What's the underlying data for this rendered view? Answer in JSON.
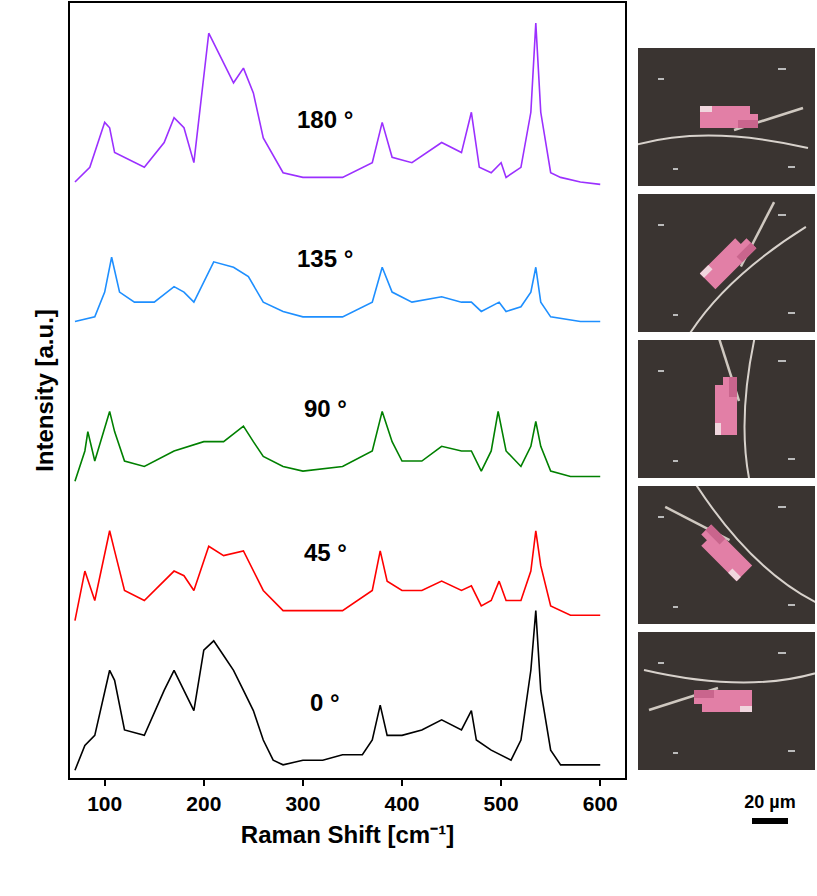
{
  "chart_data": {
    "type": "line",
    "x_label": "Raman Shift [cm⁻¹]",
    "y_label": "Intensity [a.u.]",
    "xlim": [
      65,
      625
    ],
    "xticks": [
      100,
      200,
      300,
      400,
      500,
      600
    ],
    "ylim": [
      0,
      100
    ],
    "tick_labels": "x",
    "grid": false,
    "series": [
      {
        "name": "0 °",
        "color": "#000000",
        "x": [
          70,
          80,
          90,
          100,
          105,
          110,
          120,
          140,
          160,
          170,
          180,
          190,
          200,
          210,
          220,
          230,
          240,
          250,
          260,
          270,
          280,
          300,
          320,
          340,
          360,
          370,
          378,
          385,
          400,
          420,
          440,
          460,
          470,
          475,
          490,
          500,
          510,
          520,
          530,
          535,
          540,
          550,
          560,
          580,
          600
        ],
        "values": [
          1.0,
          4.2,
          5.5,
          11.3,
          13.9,
          12.6,
          6.2,
          5.5,
          11.3,
          13.9,
          11.3,
          8.7,
          16.5,
          17.7,
          15.8,
          13.9,
          11.3,
          8.7,
          4.9,
          2.3,
          1.7,
          2.3,
          2.3,
          3.0,
          3.0,
          4.9,
          9.4,
          5.5,
          5.5,
          6.2,
          7.5,
          6.2,
          8.7,
          4.9,
          3.6,
          3.0,
          2.3,
          4.9,
          13.9,
          21.6,
          11.3,
          3.6,
          1.7,
          1.7,
          1.7
        ]
      },
      {
        "name": "45 °",
        "color": "#ff0000",
        "x": [
          70,
          80,
          90,
          105,
          110,
          120,
          140,
          170,
          180,
          190,
          205,
          220,
          240,
          250,
          260,
          280,
          300,
          340,
          370,
          378,
          385,
          400,
          420,
          440,
          460,
          470,
          480,
          490,
          498,
          505,
          520,
          530,
          535,
          540,
          550,
          570,
          600
        ],
        "values": [
          20.3,
          26.7,
          22.9,
          31.9,
          29.3,
          24.2,
          22.9,
          26.7,
          26.1,
          24.2,
          29.9,
          28.7,
          29.3,
          26.7,
          24.2,
          21.6,
          21.6,
          21.6,
          24.2,
          29.3,
          25.4,
          24.2,
          24.2,
          25.4,
          24.2,
          24.8,
          22.2,
          22.9,
          25.4,
          22.9,
          22.9,
          26.7,
          31.9,
          27.4,
          22.2,
          21.0,
          21.0
        ]
      },
      {
        "name": "90 °",
        "color": "#008000",
        "x": [
          70,
          80,
          83,
          90,
          105,
          110,
          120,
          140,
          170,
          200,
          220,
          240,
          250,
          260,
          280,
          300,
          340,
          370,
          380,
          390,
          400,
          420,
          440,
          460,
          470,
          480,
          490,
          497,
          505,
          520,
          530,
          535,
          540,
          550,
          570,
          600
        ],
        "values": [
          38.3,
          42.2,
          44.7,
          40.9,
          47.3,
          44.7,
          40.9,
          40.2,
          42.2,
          43.4,
          43.4,
          45.4,
          43.4,
          41.5,
          40.2,
          39.6,
          40.2,
          42.2,
          47.3,
          43.4,
          40.9,
          40.9,
          42.8,
          42.2,
          42.2,
          39.6,
          42.2,
          47.3,
          42.2,
          40.2,
          42.8,
          46.0,
          42.8,
          39.6,
          38.9,
          38.9
        ]
      },
      {
        "name": "135 °",
        "color": "#1e8fff",
        "x": [
          70,
          90,
          100,
          107,
          115,
          130,
          150,
          170,
          180,
          190,
          210,
          230,
          245,
          260,
          280,
          300,
          340,
          370,
          380,
          390,
          410,
          440,
          460,
          470,
          480,
          498,
          505,
          520,
          530,
          535,
          540,
          550,
          580,
          600
        ],
        "values": [
          58.9,
          59.5,
          62.7,
          67.2,
          62.7,
          61.4,
          61.4,
          63.4,
          62.7,
          61.4,
          66.6,
          65.9,
          64.7,
          61.4,
          60.2,
          59.5,
          59.5,
          61.4,
          65.9,
          62.7,
          61.4,
          62.1,
          61.4,
          61.4,
          60.2,
          61.4,
          60.2,
          60.8,
          62.7,
          65.9,
          61.4,
          59.5,
          58.9,
          58.9
        ]
      },
      {
        "name": "180 °",
        "color": "#9b30ff",
        "x": [
          70,
          85,
          100,
          105,
          110,
          120,
          140,
          160,
          170,
          180,
          190,
          205,
          215,
          230,
          240,
          250,
          260,
          280,
          300,
          340,
          370,
          380,
          390,
          410,
          440,
          460,
          470,
          478,
          490,
          500,
          505,
          520,
          530,
          535,
          540,
          550,
          560,
          580,
          600
        ],
        "values": [
          76.9,
          78.8,
          84.6,
          83.9,
          80.7,
          80.1,
          78.8,
          82.0,
          85.2,
          83.9,
          79.4,
          96.1,
          93.6,
          89.7,
          91.6,
          88.4,
          82.6,
          78.1,
          77.5,
          77.5,
          79.4,
          84.6,
          80.1,
          79.4,
          82.0,
          80.7,
          85.9,
          78.8,
          78.1,
          79.4,
          77.5,
          78.8,
          85.9,
          97.4,
          85.9,
          78.1,
          77.5,
          76.9,
          76.6
        ]
      }
    ]
  },
  "micrographs": {
    "scale_bar": "20 µm"
  }
}
